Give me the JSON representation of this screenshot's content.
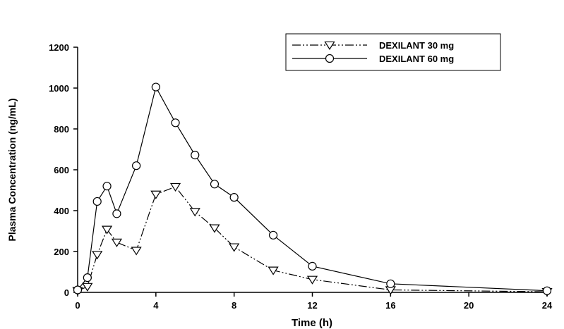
{
  "chart_data": {
    "type": "line",
    "title": "",
    "xlabel": "Time (h)",
    "ylabel": "Plasma Concentration (ng/mL)",
    "xlim": [
      0,
      24
    ],
    "ylim": [
      0,
      1200
    ],
    "xticks": [
      0,
      4,
      8,
      12,
      16,
      20,
      24
    ],
    "yticks": [
      0,
      200,
      400,
      600,
      800,
      1000,
      1200
    ],
    "grid": false,
    "legend_position": "top-right",
    "series": [
      {
        "name": "DEXILANT 30 mg",
        "marker": "triangle-down",
        "line_style": "dash-dot-dot",
        "color": "#000000",
        "points": [
          [
            0,
            8
          ],
          [
            0.5,
            28
          ],
          [
            1,
            185
          ],
          [
            1.5,
            308
          ],
          [
            2,
            245
          ],
          [
            3,
            205
          ],
          [
            4,
            480
          ],
          [
            5,
            517
          ],
          [
            6,
            395
          ],
          [
            7,
            315
          ],
          [
            8,
            222
          ],
          [
            10,
            108
          ],
          [
            12,
            63
          ],
          [
            16,
            12
          ],
          [
            24,
            3
          ]
        ]
      },
      {
        "name": "DEXILANT 60 mg",
        "marker": "circle",
        "line_style": "solid",
        "color": "#000000",
        "points": [
          [
            0,
            12
          ],
          [
            0.5,
            72
          ],
          [
            1,
            445
          ],
          [
            1.5,
            520
          ],
          [
            2,
            385
          ],
          [
            3,
            620
          ],
          [
            4,
            1005
          ],
          [
            5,
            830
          ],
          [
            6,
            672
          ],
          [
            7,
            530
          ],
          [
            8,
            465
          ],
          [
            10,
            280
          ],
          [
            12,
            128
          ],
          [
            16,
            42
          ],
          [
            24,
            8
          ]
        ]
      }
    ]
  }
}
